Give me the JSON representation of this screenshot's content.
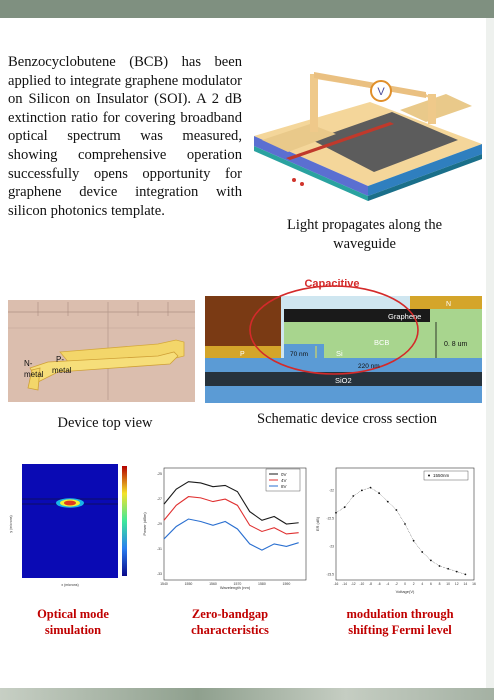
{
  "intro_text": "Benzocyclobutene (BCB) has been applied to integrate graphene modulator on Silicon on Insulator (SOI). A 2 dB extinction ratio for covering broadband optical spectrum was measured, showing comprehensive operation successfully opens opportunity for graphene device integration with silicon photonics template.",
  "figures": {
    "waveguide": {
      "caption": "Light propagates along the waveguide",
      "v_label": "V"
    },
    "top_view": {
      "caption": "Device top view",
      "n_label": "N-",
      "n_label2": "metal",
      "p_label": "P-",
      "p_label2": "metal"
    },
    "cross_section": {
      "caption": "Schematic device cross section",
      "capacitive": "Capacitive",
      "n_label": "N",
      "p_label": "P",
      "graphene": "Graphene",
      "bcb": "BCB",
      "si": "Si",
      "sio2": "SiO2",
      "thickness": "0. 8 um",
      "dim_70": "70 nm",
      "dim_220": "220 nm"
    },
    "mode_sim": {
      "caption_line1": "Optical mode",
      "caption_line2": "simulation",
      "x_label": "x (microns)",
      "y_label": "y (microns)"
    },
    "bandgap": {
      "caption_line1": "Zero-bandgap",
      "caption_line2": "characteristics",
      "x_label": "Wavelength (nm)",
      "y_label": "Power (dBm)",
      "legend": [
        "0V",
        "4V",
        "8V"
      ]
    },
    "modulation": {
      "caption_line1": "modulation through",
      "caption_line2": "shifting  Fermi level",
      "x_label": "Voltage(V)",
      "y_label": "ER (dB)",
      "legend": "1550nm"
    }
  },
  "chart_data": [
    {
      "type": "line",
      "title": "",
      "xlabel": "Wavelength (nm)",
      "ylabel": "Power (dBm)",
      "x": [
        1540,
        1545,
        1550,
        1555,
        1560,
        1565,
        1570,
        1575,
        1580,
        1585,
        1590,
        1595
      ],
      "series": [
        {
          "name": "0V",
          "values": [
            -27.4,
            -26.2,
            -25.6,
            -25.7,
            -26.0,
            -25.9,
            -26.4,
            -28.0,
            -28.7,
            -28.4,
            -29.0,
            -28.9
          ]
        },
        {
          "name": "4V",
          "values": [
            -28.7,
            -27.5,
            -26.8,
            -26.9,
            -27.2,
            -27.0,
            -27.5,
            -29.1,
            -29.6,
            -29.3,
            -29.8,
            -29.7
          ]
        },
        {
          "name": "8V",
          "values": [
            -30.2,
            -29.2,
            -28.6,
            -28.8,
            -29.1,
            -28.8,
            -29.4,
            -30.6,
            -31.1,
            -30.6,
            -30.8,
            -30.5
          ]
        }
      ],
      "xlim": [
        1540,
        1598
      ],
      "ylim": [
        -33.5,
        -24.5
      ],
      "legend": "top-right"
    },
    {
      "type": "scatter",
      "title": "",
      "xlabel": "Voltage(V)",
      "ylabel": "ER (dB)",
      "x": [
        -16,
        -14,
        -12,
        -10,
        -8,
        -6,
        -4,
        -2,
        0,
        2,
        4,
        6,
        8,
        10,
        12,
        14
      ],
      "series": [
        {
          "name": "1550nm",
          "values": [
            -22.4,
            -22.3,
            -22.1,
            -22.0,
            -21.95,
            -22.05,
            -22.2,
            -22.35,
            -22.6,
            -22.9,
            -23.1,
            -23.25,
            -23.35,
            -23.4,
            -23.45,
            -23.5
          ]
        }
      ],
      "xlim": [
        -16,
        16
      ],
      "ylim": [
        -23.6,
        -21.6
      ],
      "legend": "top-right"
    }
  ]
}
